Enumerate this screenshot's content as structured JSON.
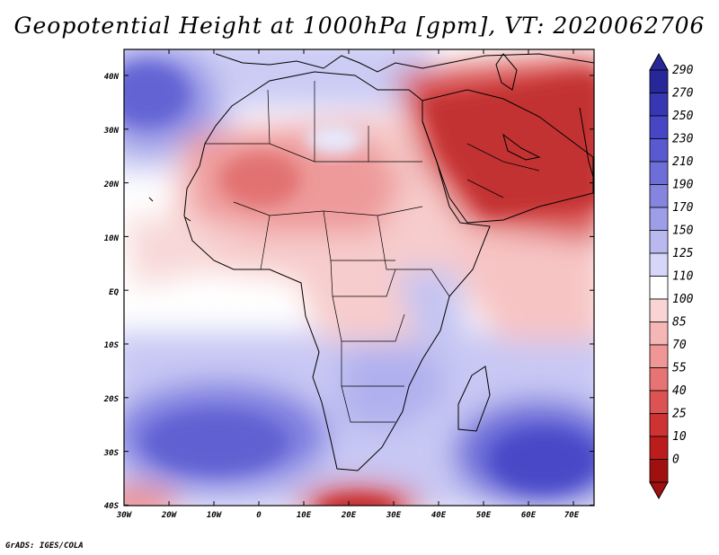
{
  "title": "Geopotential Height at 1000hPa [gpm], VT: 2020062706",
  "credit": "GrADS: IGES/COLA",
  "map": {
    "lat_labels": [
      "40N",
      "30N",
      "20N",
      "10N",
      "EQ",
      "10S",
      "20S",
      "30S",
      "40S"
    ],
    "lon_labels": [
      "30W",
      "20W",
      "10W",
      "0",
      "10E",
      "20E",
      "30E",
      "40E",
      "50E",
      "60E",
      "70E"
    ]
  },
  "colorbar": {
    "labels": [
      "290",
      "270",
      "250",
      "230",
      "210",
      "190",
      "170",
      "150",
      "125",
      "110",
      "100",
      "85",
      "70",
      "55",
      "40",
      "25",
      "10",
      "0"
    ],
    "colors": [
      "#27279a",
      "#3737b4",
      "#4747c6",
      "#5a5ad0",
      "#6e6ed8",
      "#8585e0",
      "#9e9ee8",
      "#b9b9f0",
      "#d6d6f8",
      "#ffffff",
      "#fad4d4",
      "#f5b6b6",
      "#ef9696",
      "#e77474",
      "#dd5252",
      "#cf3232",
      "#bb1c1c",
      "#a11010"
    ]
  },
  "colors": {
    "frame": "#000000",
    "border": "#000000"
  }
}
